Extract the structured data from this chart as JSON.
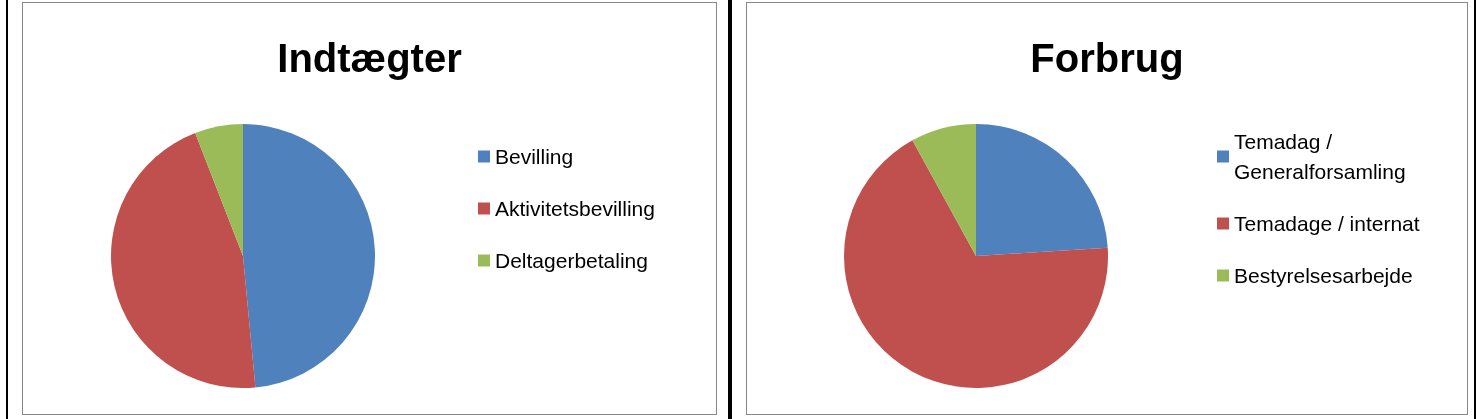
{
  "chart_data": [
    {
      "type": "pie",
      "title": "Indtægter",
      "categories": [
        "Bevilling",
        "Aktivitetsbevilling",
        "Deltagerbetaling"
      ],
      "values": [
        48.5,
        45.6,
        5.9
      ],
      "colors": [
        "#4f81bd",
        "#c0504d",
        "#9bbb59"
      ],
      "legend": "right"
    },
    {
      "type": "pie",
      "title": "Forbrug",
      "categories": [
        "Temadag / Generalforsamling",
        "Temadage / internat",
        "Bestyrelsesarbejde"
      ],
      "values": [
        24,
        68,
        8
      ],
      "colors": [
        "#4f81bd",
        "#c0504d",
        "#9bbb59"
      ],
      "legend": "right"
    }
  ]
}
